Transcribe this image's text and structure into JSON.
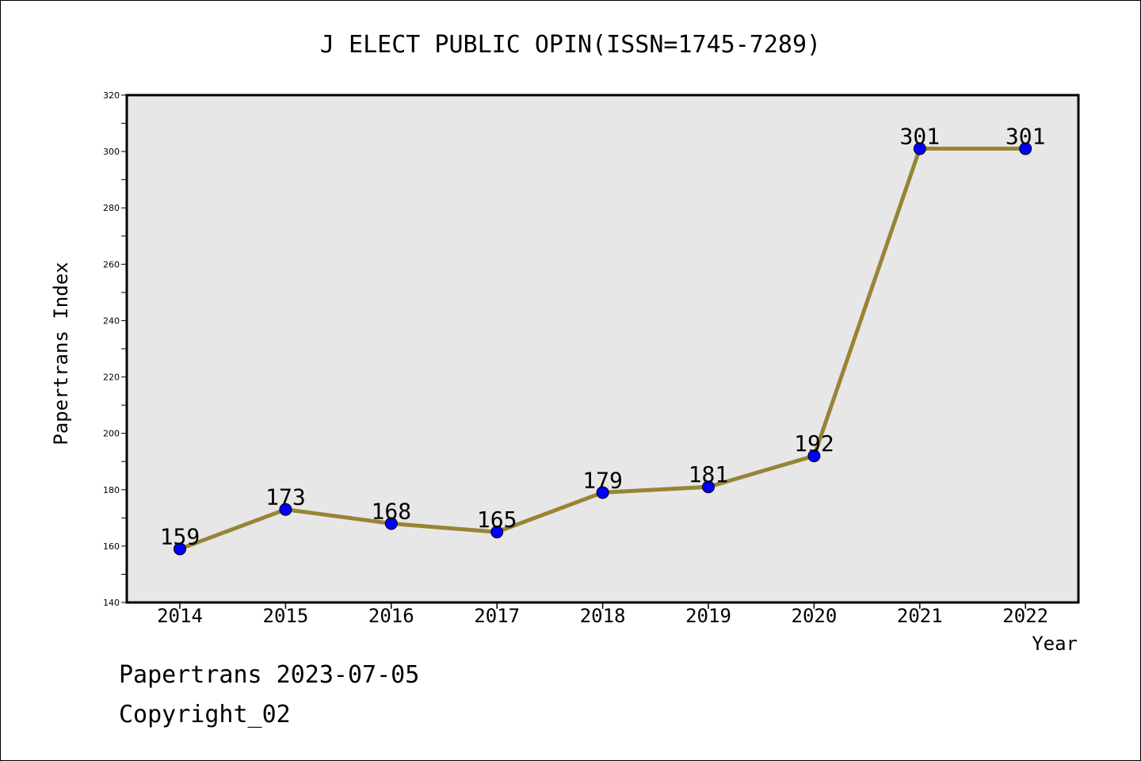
{
  "chart_data": {
    "type": "line",
    "title": "J ELECT PUBLIC OPIN(ISSN=1745-7289)",
    "xlabel": "Year",
    "ylabel": "Papertrans Index",
    "categories": [
      "2014",
      "2015",
      "2016",
      "2017",
      "2018",
      "2019",
      "2020",
      "2021",
      "2022"
    ],
    "values": [
      159,
      173,
      168,
      165,
      179,
      181,
      192,
      301,
      301
    ],
    "data_labels": [
      "159",
      "173",
      "168",
      "165",
      "179",
      "181",
      "192",
      "301",
      "301"
    ],
    "ylim": [
      140,
      320
    ],
    "y_ticks": [
      140,
      160,
      180,
      200,
      220,
      240,
      260,
      280,
      300,
      320
    ],
    "y_tick_labels": [
      "140",
      "160",
      "180",
      "200",
      "220",
      "240",
      "260",
      "280",
      "300",
      "320"
    ],
    "grid": false,
    "colors": {
      "line": "#978536",
      "marker": "#0000ff",
      "plot_background": "#e7e7e7"
    }
  },
  "footer": {
    "line1": "Papertrans 2023-07-05",
    "line2": "Copyright_02"
  }
}
